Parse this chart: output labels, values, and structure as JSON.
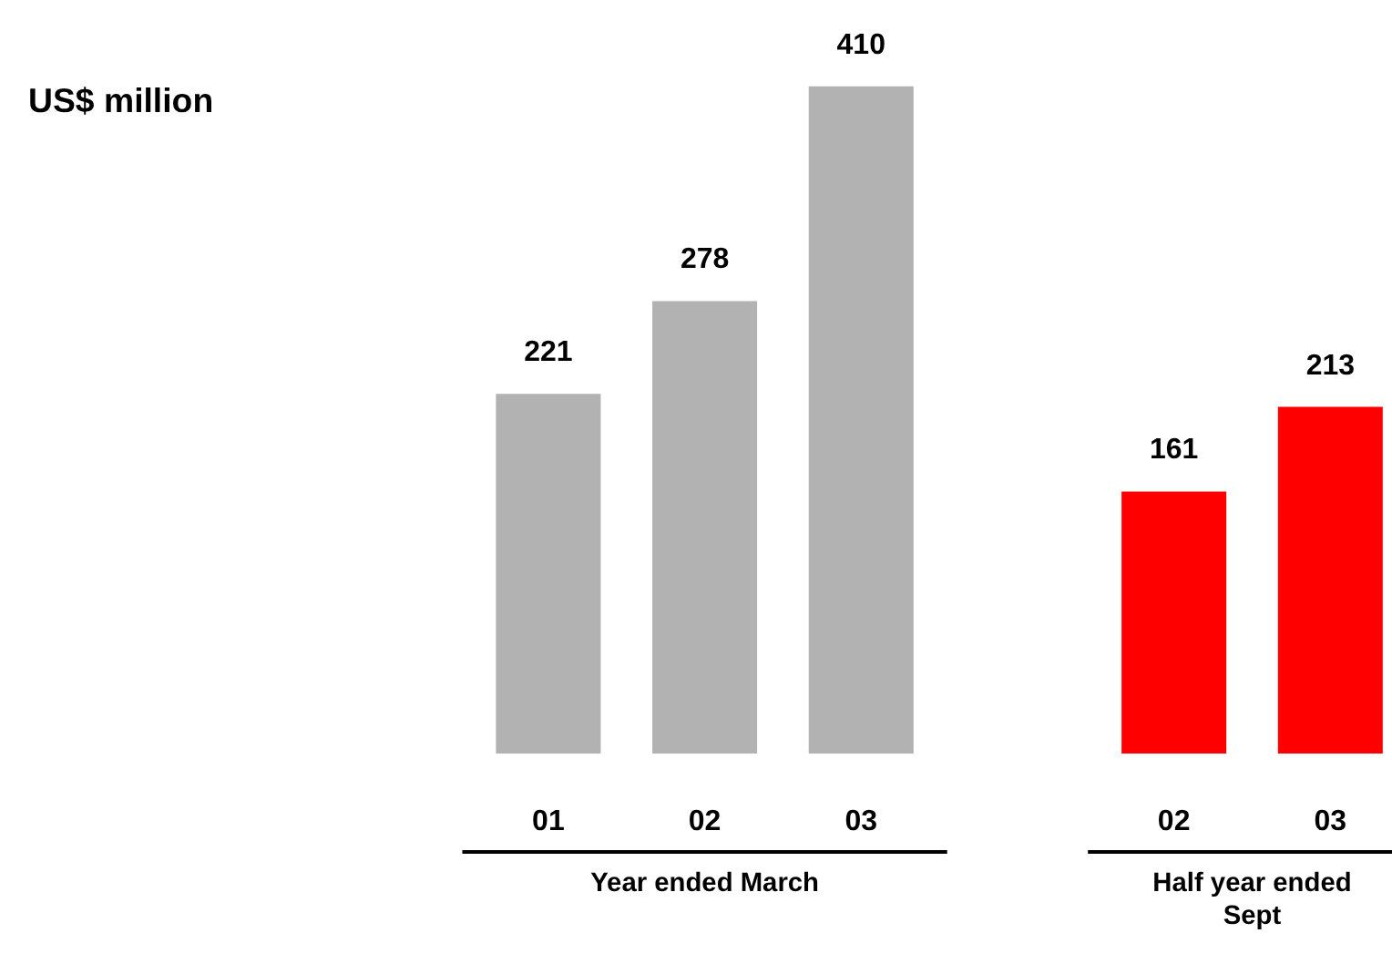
{
  "chart_data": {
    "type": "bar",
    "categories": [
      "01",
      "02",
      "03",
      null,
      "02",
      "03"
    ],
    "values": [
      221,
      278,
      410,
      null,
      161,
      213
    ],
    "colors": [
      "#b2b2b2",
      "#b2b2b2",
      "#b2b2b2",
      null,
      "#ff0000",
      "#ff0000"
    ],
    "annotations": [
      "US$ million",
      "Year ended March",
      "Half year ended\nSept"
    ],
    "data_labels": true
  }
}
